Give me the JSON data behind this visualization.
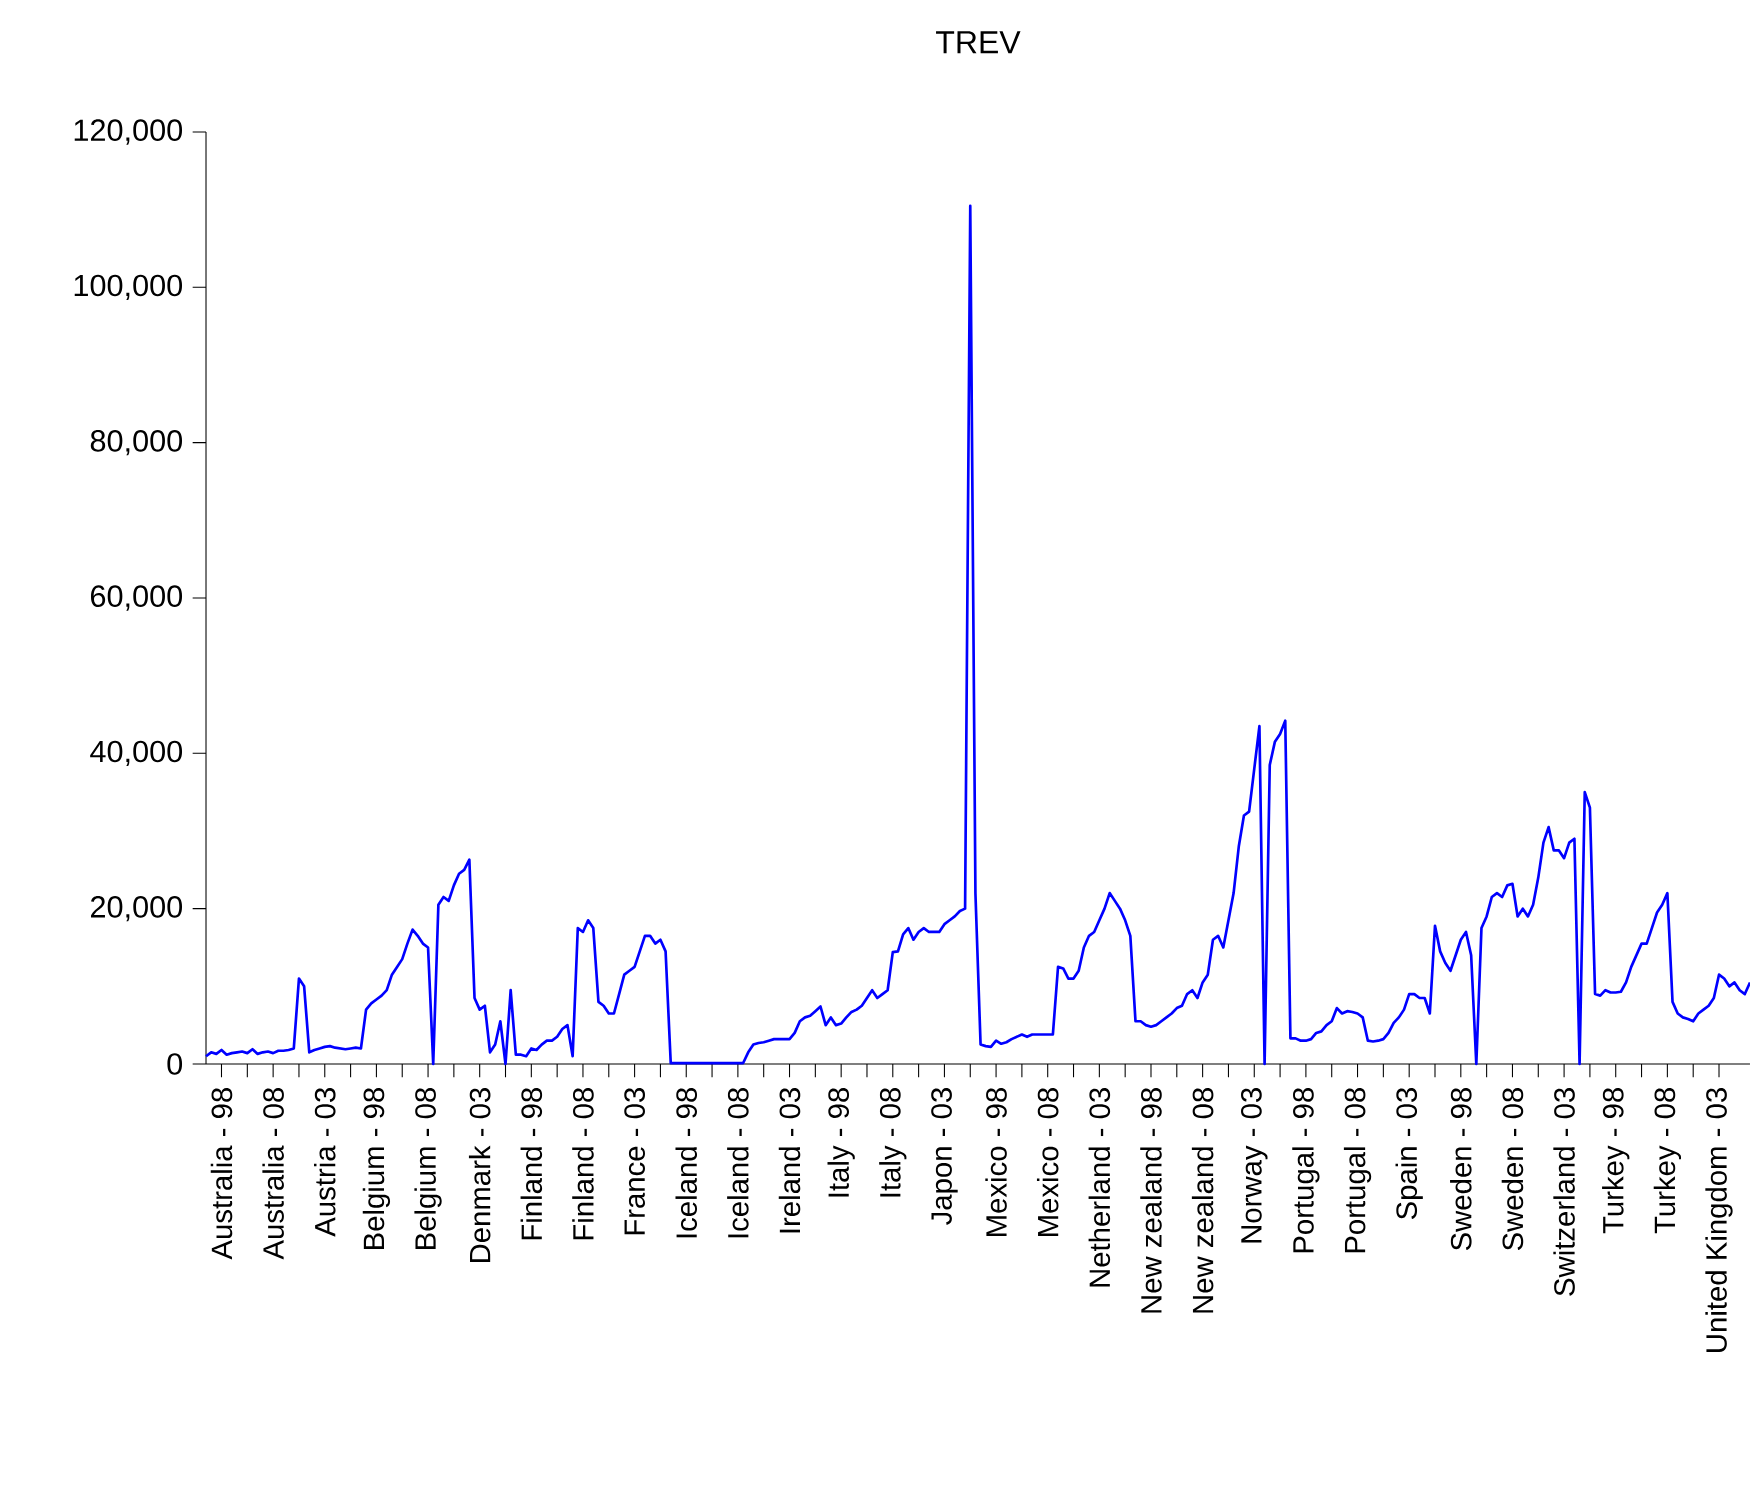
{
  "chart_data": {
    "type": "line",
    "title": "TREV",
    "color": "#0000ff",
    "categories": [
      null,
      null,
      null,
      "Australia - 98",
      null,
      null,
      null,
      null,
      null,
      null,
      null,
      null,
      null,
      "Australia - 08",
      null,
      null,
      null,
      null,
      null,
      null,
      null,
      null,
      null,
      "Austria - 03",
      null,
      null,
      null,
      null,
      null,
      null,
      null,
      null,
      null,
      "Belgium - 98",
      null,
      null,
      null,
      null,
      null,
      null,
      null,
      null,
      null,
      "Belgium - 08",
      null,
      null,
      null,
      null,
      null,
      null,
      null,
      null,
      null,
      "Denmark - 03",
      null,
      null,
      null,
      null,
      null,
      null,
      null,
      null,
      null,
      "Finland - 98",
      null,
      null,
      null,
      null,
      null,
      null,
      null,
      null,
      null,
      "Finland - 08",
      null,
      null,
      null,
      null,
      null,
      null,
      null,
      null,
      null,
      "France - 03",
      null,
      null,
      null,
      null,
      null,
      null,
      null,
      null,
      null,
      "Iceland - 98",
      null,
      null,
      null,
      null,
      null,
      null,
      null,
      null,
      null,
      "Iceland - 08",
      null,
      null,
      null,
      null,
      null,
      null,
      null,
      null,
      null,
      "Ireland - 03",
      null,
      null,
      null,
      null,
      null,
      null,
      null,
      null,
      null,
      "Italy - 98",
      null,
      null,
      null,
      null,
      null,
      null,
      null,
      null,
      null,
      "Italy - 08",
      null,
      null,
      null,
      null,
      null,
      null,
      null,
      null,
      null,
      "Japon - 03",
      null,
      null,
      null,
      null,
      null,
      null,
      null,
      null,
      null,
      "Mexico - 98",
      null,
      null,
      null,
      null,
      null,
      null,
      null,
      null,
      null,
      "Mexico - 08",
      null,
      null,
      null,
      null,
      null,
      null,
      null,
      null,
      null,
      "Netherland - 03",
      null,
      null,
      null,
      null,
      null,
      null,
      null,
      null,
      null,
      "New zealand - 98",
      null,
      null,
      null,
      null,
      null,
      null,
      null,
      null,
      null,
      "New zealand - 08",
      null,
      null,
      null,
      null,
      null,
      null,
      null,
      null,
      null,
      "Norway - 03",
      null,
      null,
      null,
      null,
      null,
      null,
      null,
      null,
      null,
      "Portugal - 98",
      null,
      null,
      null,
      null,
      null,
      null,
      null,
      null,
      null,
      "Portugal - 08",
      null,
      null,
      null,
      null,
      null,
      null,
      null,
      null,
      null,
      "Spain - 03",
      null,
      null,
      null,
      null,
      null,
      null,
      null,
      null,
      null,
      "Sweden - 98",
      null,
      null,
      null,
      null,
      null,
      null,
      null,
      null,
      null,
      "Sweden - 08",
      null,
      null,
      null,
      null,
      null,
      null,
      null,
      null,
      null,
      "Switzerland - 03",
      null,
      null,
      null,
      null,
      null,
      null,
      null,
      null,
      null,
      "Turkey - 98",
      null,
      null,
      null,
      null,
      null,
      null,
      null,
      null,
      null,
      "Turkey - 08",
      null,
      null,
      null,
      null,
      null,
      null,
      null,
      null,
      null,
      "United Kingdom - 03",
      null,
      null,
      null,
      null,
      null,
      null
    ],
    "values": [
      1000,
      1500,
      1300,
      1800,
      1200,
      1400,
      1500,
      1600,
      1400,
      1900,
      1300,
      1500,
      1600,
      1400,
      1700,
      1700,
      1800,
      2000,
      11000,
      10000,
      1500,
      1800,
      2000,
      2200,
      2300,
      2100,
      2000,
      1900,
      2000,
      2100,
      2000,
      7000,
      7800,
      8300,
      8800,
      9500,
      11500,
      12500,
      13500,
      15500,
      17300,
      16500,
      15500,
      15000,
      0,
      20500,
      21500,
      21000,
      23000,
      24500,
      25000,
      26300,
      8500,
      7000,
      7500,
      1500,
      2500,
      5500,
      0,
      9500,
      1200,
      1200,
      1000,
      2000,
      1800,
      2500,
      3000,
      3000,
      3500,
      4500,
      5000,
      1000,
      17500,
      17000,
      18500,
      17500,
      8000,
      7500,
      6500,
      6500,
      9000,
      11500,
      12000,
      12500,
      14500,
      16500,
      16500,
      15500,
      16000,
      14500,
      100,
      100,
      100,
      100,
      100,
      100,
      100,
      100,
      100,
      100,
      100,
      100,
      100,
      100,
      100,
      1500,
      2500,
      2700,
      2800,
      3000,
      3200,
      3200,
      3200,
      3200,
      4000,
      5500,
      6000,
      6200,
      6800,
      7400,
      5000,
      6000,
      5000,
      5200,
      6000,
      6700,
      7000,
      7500,
      8500,
      9500,
      8500,
      9000,
      9500,
      14400,
      14500,
      16700,
      17500,
      16000,
      17000,
      17500,
      17000,
      17000,
      17000,
      18000,
      18500,
      19000,
      19700,
      20000,
      110500,
      22000,
      2500,
      2300,
      2200,
      3000,
      2600,
      2800,
      3200,
      3500,
      3800,
      3500,
      3800,
      3800,
      3800,
      3800,
      3800,
      12500,
      12300,
      11000,
      11000,
      12000,
      15000,
      16500,
      17000,
      18500,
      20000,
      22000,
      21000,
      20000,
      18500,
      16500,
      5500,
      5500,
      5000,
      4800,
      5000,
      5500,
      6000,
      6500,
      7200,
      7500,
      9000,
      9500,
      8500,
      10500,
      11500,
      16000,
      16500,
      15000,
      18500,
      22000,
      28000,
      32000,
      32500,
      38000,
      43500,
      0,
      38500,
      41500,
      42500,
      44200,
      3300,
      3300,
      3000,
      3000,
      3200,
      4000,
      4200,
      5000,
      5500,
      7200,
      6500,
      6800,
      6700,
      6500,
      6000,
      3000,
      2900,
      3000,
      3200,
      4000,
      5300,
      6000,
      7000,
      9000,
      9000,
      8500,
      8500,
      6500,
      17800,
      14500,
      13000,
      12000,
      14000,
      16000,
      17000,
      14000,
      0,
      17500,
      19000,
      21500,
      22000,
      21500,
      23000,
      23200,
      19000,
      20000,
      19000,
      20500,
      24000,
      28500,
      30500,
      27500,
      27500,
      26500,
      28500,
      29000,
      0,
      35000,
      33000,
      9000,
      8800,
      9500,
      9200,
      9200,
      9300,
      10500,
      12500,
      14000,
      15500,
      15500,
      17500,
      19500,
      20500,
      22000,
      8000,
      6500,
      6000,
      5800,
      5500,
      6500,
      7000,
      7500,
      8500,
      11500,
      11000,
      10000,
      10500,
      9500,
      9000,
      10500
    ],
    "ylim": [
      0,
      120000
    ],
    "yticks": [
      {
        "value": 0,
        "label": "0"
      },
      {
        "value": 20000,
        "label": "20,000"
      },
      {
        "value": 40000,
        "label": "40,000"
      },
      {
        "value": 60000,
        "label": "60,000"
      },
      {
        "value": 80000,
        "label": "80,000"
      },
      {
        "value": 100000,
        "label": "100,000"
      },
      {
        "value": 120000,
        "label": "120,000"
      }
    ]
  }
}
